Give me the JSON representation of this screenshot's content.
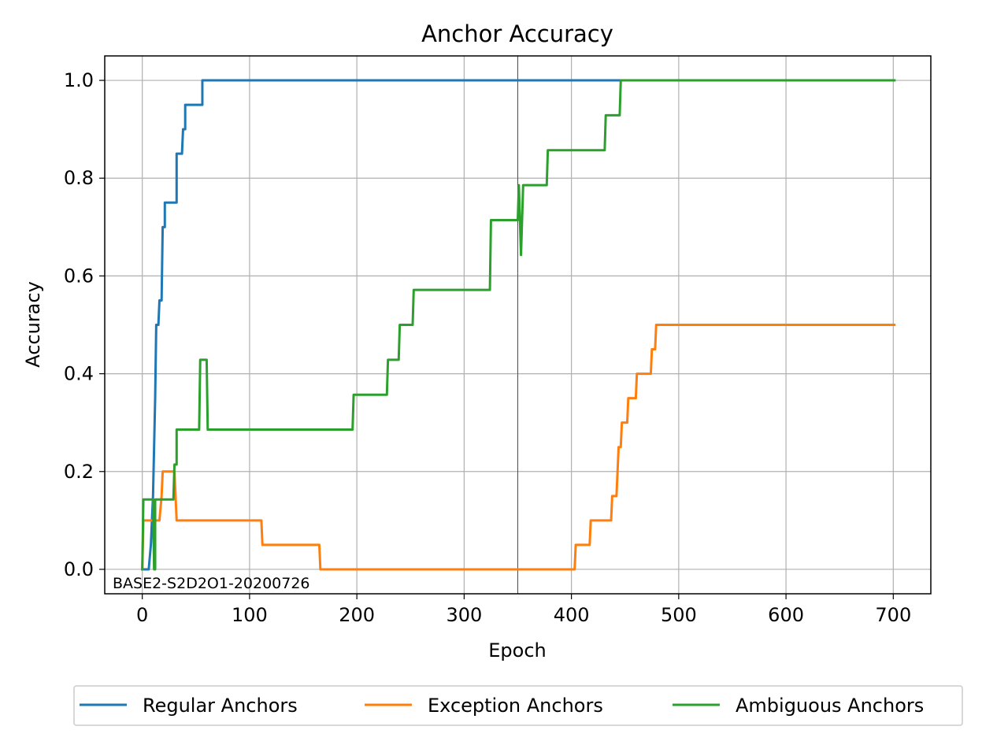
{
  "chart_data": {
    "type": "line",
    "title": "Anchor Accuracy",
    "xlabel": "Epoch",
    "ylabel": "Accuracy",
    "xlim": [
      -35,
      735
    ],
    "ylim": [
      -0.05,
      1.05
    ],
    "xticks": [
      0,
      100,
      200,
      300,
      400,
      500,
      600,
      700
    ],
    "yticks": [
      0.0,
      0.2,
      0.4,
      0.6,
      0.8,
      1.0
    ],
    "xtick_labels": [
      "0",
      "100",
      "200",
      "300",
      "400",
      "500",
      "600",
      "700"
    ],
    "ytick_labels": [
      "0.0",
      "0.2",
      "0.4",
      "0.6",
      "0.8",
      "1.0"
    ],
    "grid": true,
    "legend_position": "bottom-center",
    "annotation": "BASE2-S2D2O1-20200726",
    "vline": {
      "x": 350,
      "color": "#ff0000"
    },
    "series": [
      {
        "name": "Regular Anchors",
        "color": "#1f77b4",
        "points": [
          [
            0,
            0
          ],
          [
            1,
            0
          ],
          [
            6,
            0
          ],
          [
            8,
            0.05
          ],
          [
            10,
            0.15
          ],
          [
            12,
            0.35
          ],
          [
            13,
            0.5
          ],
          [
            15,
            0.5
          ],
          [
            16,
            0.55
          ],
          [
            18,
            0.55
          ],
          [
            19,
            0.7
          ],
          [
            21,
            0.7
          ],
          [
            21,
            0.75
          ],
          [
            32,
            0.75
          ],
          [
            32,
            0.85
          ],
          [
            37,
            0.85
          ],
          [
            38,
            0.9
          ],
          [
            40,
            0.9
          ],
          [
            40,
            0.95
          ],
          [
            56,
            0.95
          ],
          [
            56,
            1.0
          ],
          [
            701,
            1.0
          ]
        ]
      },
      {
        "name": "Exception Anchors",
        "color": "#ff7f0e",
        "points": [
          [
            0,
            0
          ],
          [
            1,
            0.1
          ],
          [
            16,
            0.1
          ],
          [
            18,
            0.15
          ],
          [
            19,
            0.2
          ],
          [
            30,
            0.2
          ],
          [
            31,
            0.15
          ],
          [
            32,
            0.1
          ],
          [
            111,
            0.1
          ],
          [
            112,
            0.05
          ],
          [
            165,
            0.05
          ],
          [
            166,
            0
          ],
          [
            403,
            0
          ],
          [
            404,
            0.05
          ],
          [
            417,
            0.05
          ],
          [
            418,
            0.1
          ],
          [
            437,
            0.1
          ],
          [
            438,
            0.15
          ],
          [
            442,
            0.15
          ],
          [
            444,
            0.25
          ],
          [
            446,
            0.25
          ],
          [
            447,
            0.3
          ],
          [
            452,
            0.3
          ],
          [
            453,
            0.35
          ],
          [
            460,
            0.35
          ],
          [
            461,
            0.4
          ],
          [
            474,
            0.4
          ],
          [
            475,
            0.45
          ],
          [
            478,
            0.45
          ],
          [
            479,
            0.5
          ],
          [
            701,
            0.5
          ]
        ]
      },
      {
        "name": "Ambiguous Anchors",
        "color": "#2ca02c",
        "points": [
          [
            0,
            0
          ],
          [
            1,
            0.1429
          ],
          [
            10,
            0.1429
          ],
          [
            11,
            0
          ],
          [
            12,
            0
          ],
          [
            12,
            0.1429
          ],
          [
            29,
            0.1429
          ],
          [
            30,
            0.2143
          ],
          [
            32,
            0.2143
          ],
          [
            32,
            0.2857
          ],
          [
            53,
            0.2857
          ],
          [
            54,
            0.4286
          ],
          [
            60,
            0.4286
          ],
          [
            61,
            0.2857
          ],
          [
            196,
            0.2857
          ],
          [
            197,
            0.3571
          ],
          [
            228,
            0.3571
          ],
          [
            229,
            0.4286
          ],
          [
            239,
            0.4286
          ],
          [
            240,
            0.5
          ],
          [
            252,
            0.5
          ],
          [
            253,
            0.5714
          ],
          [
            324,
            0.5714
          ],
          [
            325,
            0.7143
          ],
          [
            350,
            0.7143
          ],
          [
            351,
            0.7857
          ],
          [
            353,
            0.6429
          ],
          [
            355,
            0.7857
          ],
          [
            377,
            0.7857
          ],
          [
            378,
            0.8571
          ],
          [
            431,
            0.8571
          ],
          [
            432,
            0.9286
          ],
          [
            445,
            0.9286
          ],
          [
            446,
            1.0
          ],
          [
            701,
            1.0
          ]
        ]
      }
    ]
  }
}
